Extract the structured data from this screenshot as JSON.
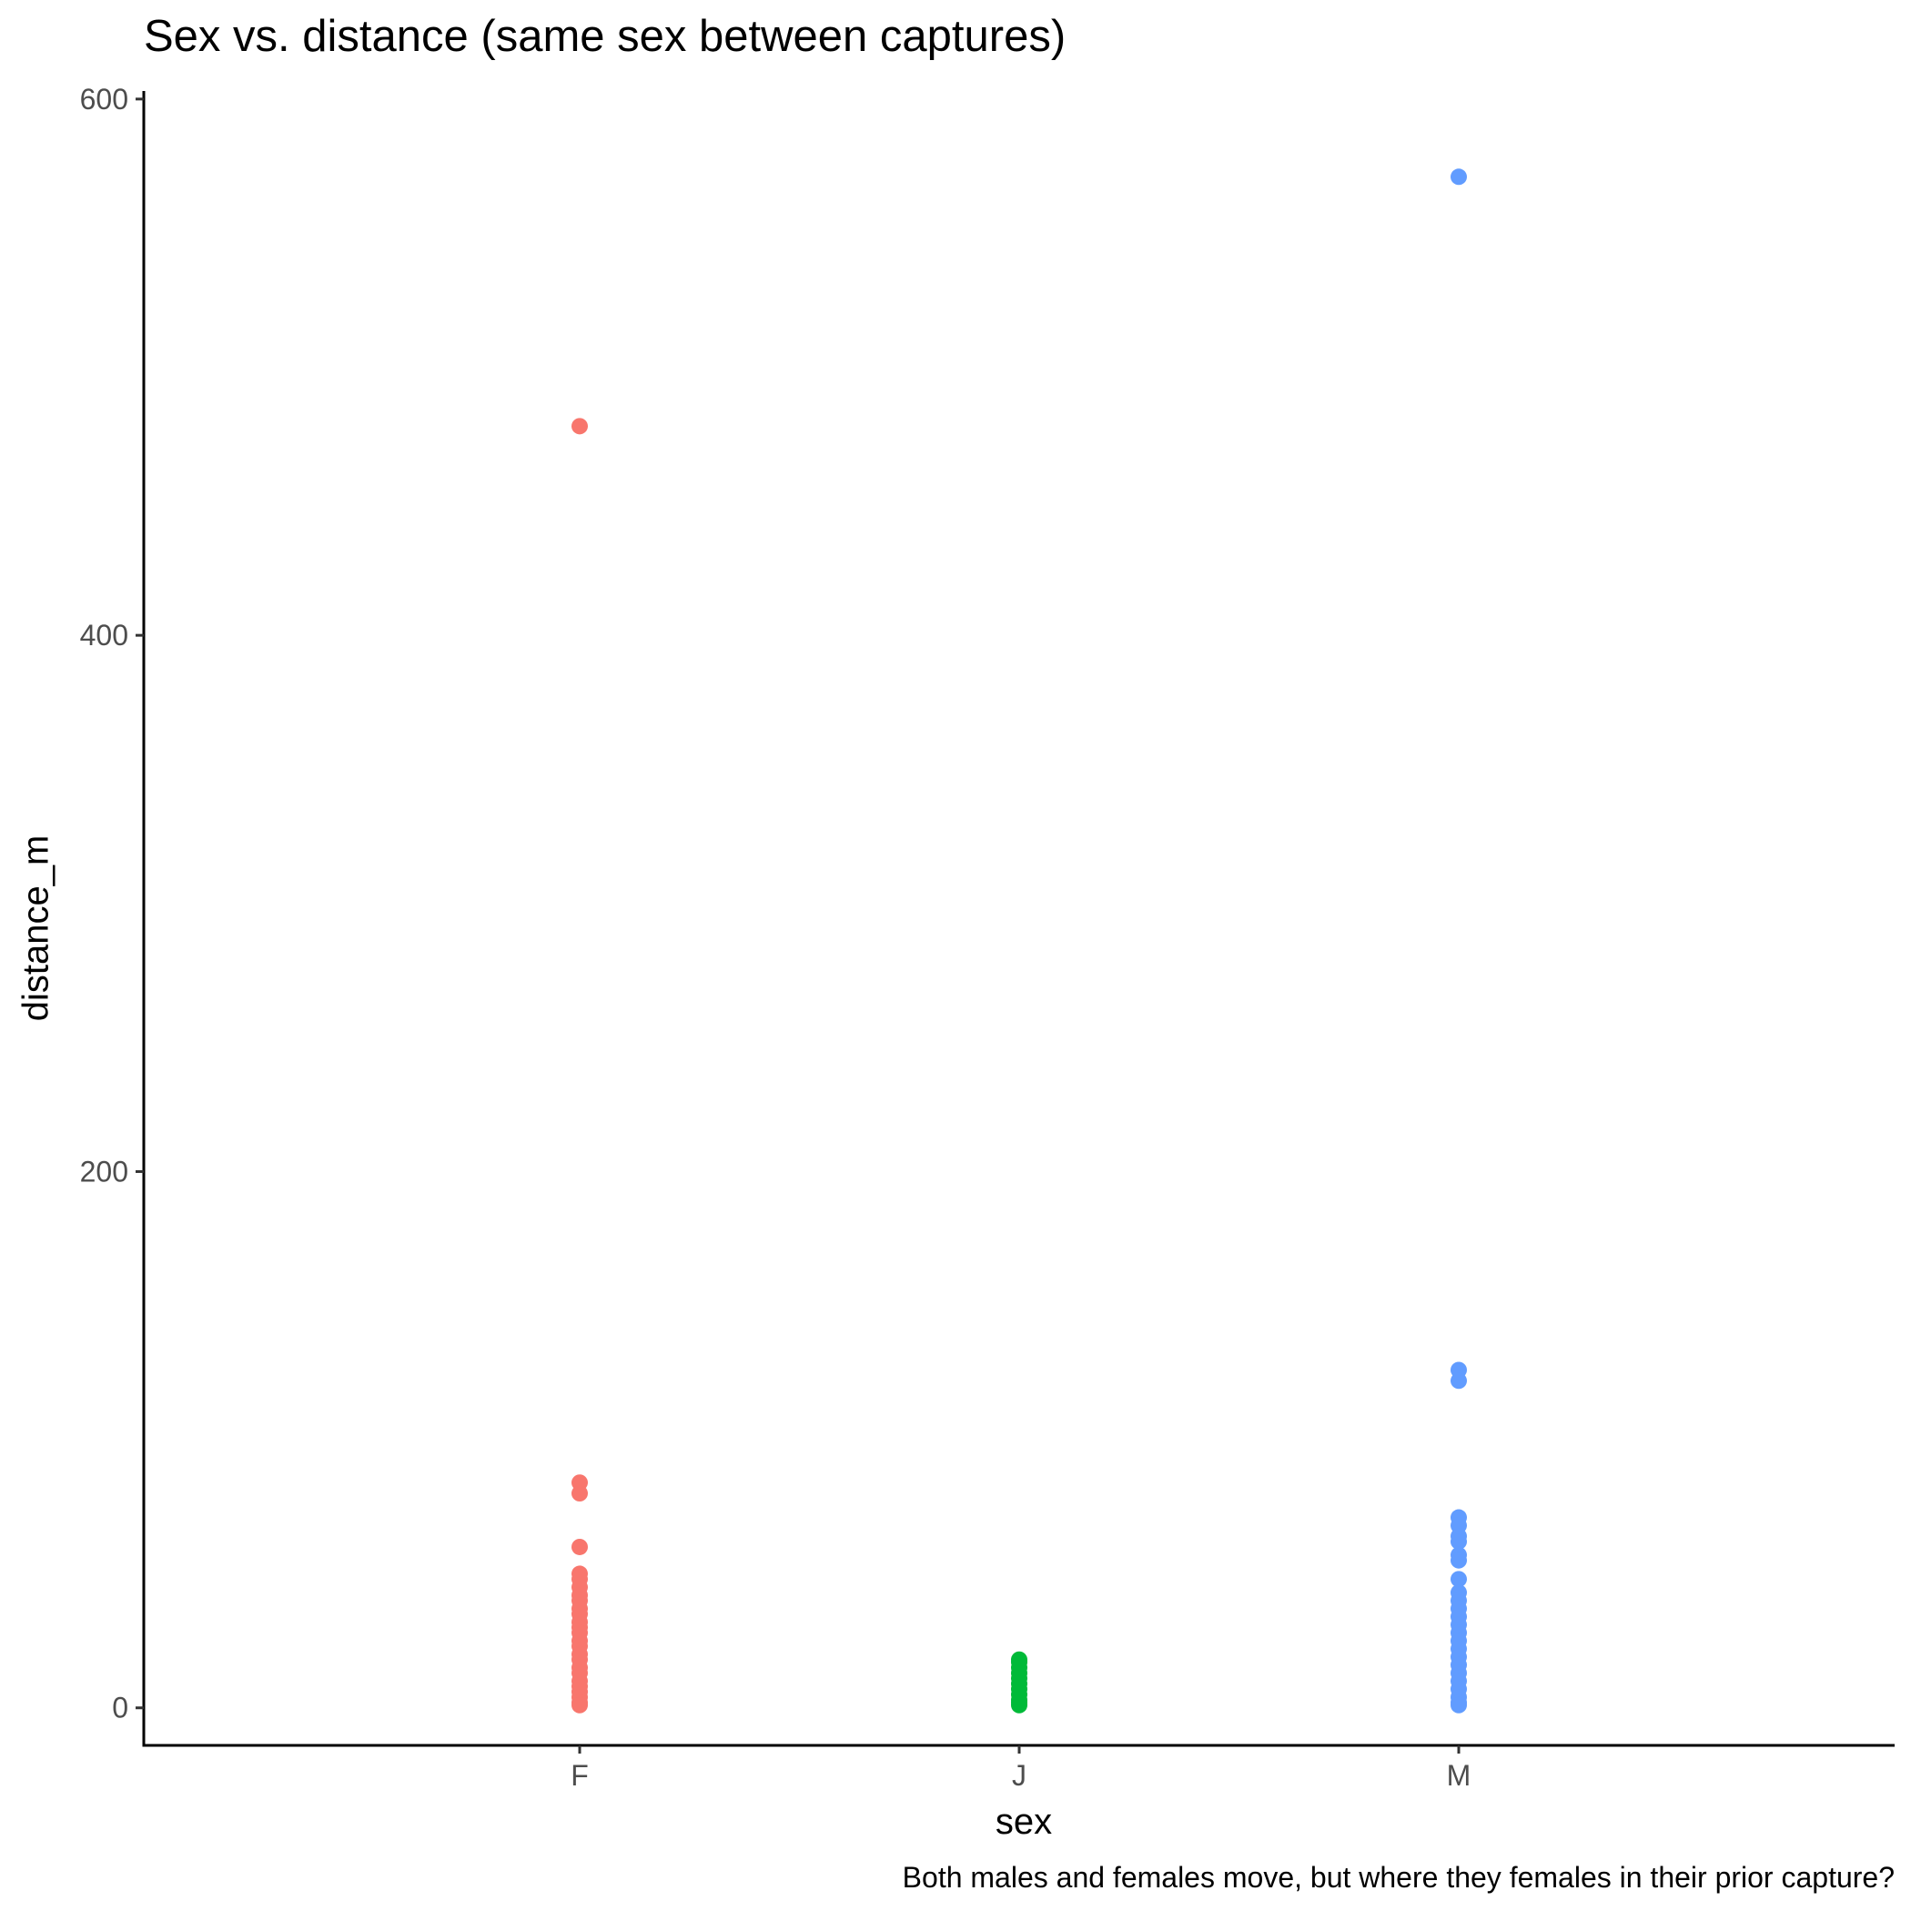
{
  "chart_data": {
    "type": "scatter",
    "title": "Sex vs. distance (same sex between captures)",
    "caption": "Both males and females move, but where they females in their prior capture?",
    "xlabel": "sex",
    "ylabel": "distance_m",
    "categories": [
      "F",
      "J",
      "M"
    ],
    "ylim": [
      -14,
      603
    ],
    "yticks": [
      0,
      200,
      400,
      600
    ],
    "grid": false,
    "legend": "none",
    "series": [
      {
        "category": "F",
        "color": "#F8766D",
        "values": [
          478,
          84,
          80,
          60,
          50,
          48,
          45,
          42,
          40,
          37,
          35,
          32,
          30,
          28,
          25,
          23,
          20,
          18,
          15,
          13,
          10,
          8,
          6,
          4,
          2,
          1
        ]
      },
      {
        "category": "J",
        "color": "#00BA38",
        "values": [
          18,
          17,
          15,
          13,
          11,
          9,
          7,
          5,
          3,
          2,
          1
        ]
      },
      {
        "category": "M",
        "color": "#619CFF",
        "values": [
          571,
          126,
          122,
          71,
          68,
          64,
          62,
          57,
          55,
          48,
          43,
          40,
          37,
          34,
          31,
          28,
          25,
          22,
          19,
          16,
          13,
          10,
          7,
          4,
          2,
          1
        ]
      }
    ]
  }
}
